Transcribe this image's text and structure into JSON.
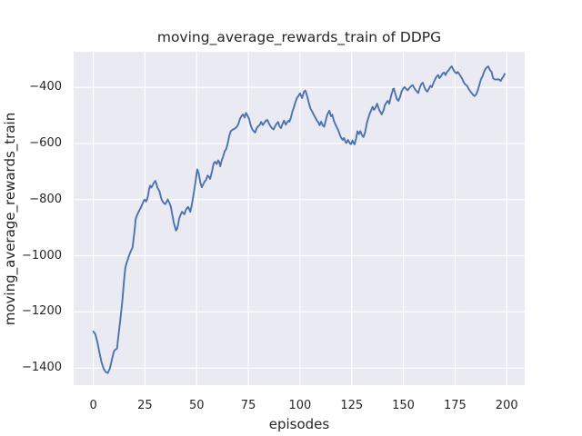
{
  "figure": {
    "background": "#ffffff"
  },
  "chart_data": {
    "type": "line",
    "title": "moving_average_rewards_train of DDPG",
    "xlabel": "episodes",
    "ylabel": "moving_average_rewards_train",
    "xlim": [
      -9.5,
      208.7
    ],
    "ylim": [
      -1461,
      -273
    ],
    "xticks": [
      0,
      25,
      50,
      75,
      100,
      125,
      150,
      175,
      200
    ],
    "yticks": [
      -400,
      -600,
      -800,
      -1000,
      -1200,
      -1400
    ],
    "grid": true,
    "legend_position": "none",
    "style": {
      "plot_background": "#eaeaf2",
      "grid_color": "#ffffff",
      "line_color": "#4c72b0",
      "text_color": "#262626",
      "line_width": 1.9
    },
    "series": [
      {
        "name": "moving_average_rewards_train",
        "points": [
          [
            0,
            -1270
          ],
          [
            0.5,
            -1274
          ],
          [
            1,
            -1280
          ],
          [
            2,
            -1308
          ],
          [
            3,
            -1346
          ],
          [
            4,
            -1380
          ],
          [
            5,
            -1402
          ],
          [
            6,
            -1414
          ],
          [
            7,
            -1418
          ],
          [
            8,
            -1402
          ],
          [
            9,
            -1370
          ],
          [
            10,
            -1340
          ],
          [
            10.5,
            -1336
          ],
          [
            11,
            -1333
          ],
          [
            11.5,
            -1330
          ],
          [
            12,
            -1295
          ],
          [
            13,
            -1232
          ],
          [
            14,
            -1165
          ],
          [
            15,
            -1078
          ],
          [
            15.5,
            -1043
          ],
          [
            16,
            -1028
          ],
          [
            17,
            -1006
          ],
          [
            17.6,
            -994
          ],
          [
            18,
            -986
          ],
          [
            19,
            -970
          ],
          [
            20,
            -908
          ],
          [
            20.5,
            -870
          ],
          [
            21,
            -858
          ],
          [
            22,
            -842
          ],
          [
            23,
            -828
          ],
          [
            24,
            -811
          ],
          [
            24.5,
            -802
          ],
          [
            25,
            -800
          ],
          [
            25.5,
            -807
          ],
          [
            26,
            -800
          ],
          [
            26.5,
            -785
          ],
          [
            27,
            -762
          ],
          [
            27.5,
            -750
          ],
          [
            28,
            -757
          ],
          [
            28.5,
            -752
          ],
          [
            29,
            -744
          ],
          [
            29.5,
            -738
          ],
          [
            30,
            -733
          ],
          [
            30.5,
            -742
          ],
          [
            31,
            -757
          ],
          [
            32,
            -770
          ],
          [
            33,
            -799
          ],
          [
            34,
            -811
          ],
          [
            34.8,
            -816
          ],
          [
            35.3,
            -810
          ],
          [
            36,
            -799
          ],
          [
            36.7,
            -810
          ],
          [
            37.5,
            -825
          ],
          [
            38,
            -845
          ],
          [
            39,
            -884
          ],
          [
            40,
            -910
          ],
          [
            40.5,
            -905
          ],
          [
            41,
            -890
          ],
          [
            41.5,
            -869
          ],
          [
            42,
            -858
          ],
          [
            42.9,
            -843
          ],
          [
            43.5,
            -848
          ],
          [
            44.1,
            -852
          ],
          [
            44.6,
            -840
          ],
          [
            45.1,
            -832
          ],
          [
            45.9,
            -826
          ],
          [
            46.4,
            -834
          ],
          [
            46.9,
            -843
          ],
          [
            47.5,
            -825
          ],
          [
            48.1,
            -799
          ],
          [
            48.8,
            -768
          ],
          [
            49.6,
            -728
          ],
          [
            50.3,
            -692
          ],
          [
            51,
            -706
          ],
          [
            51.8,
            -740
          ],
          [
            52.5,
            -756
          ],
          [
            53,
            -748
          ],
          [
            53.8,
            -736
          ],
          [
            54.6,
            -729
          ],
          [
            55.3,
            -714
          ],
          [
            56,
            -719
          ],
          [
            56.5,
            -726
          ],
          [
            57,
            -712
          ],
          [
            57.5,
            -697
          ],
          [
            58.2,
            -671
          ],
          [
            58.9,
            -665
          ],
          [
            59.7,
            -673
          ],
          [
            60.4,
            -660
          ],
          [
            61,
            -668
          ],
          [
            61.4,
            -681
          ],
          [
            62,
            -663
          ],
          [
            62.8,
            -647
          ],
          [
            63.6,
            -627
          ],
          [
            64.3,
            -620
          ],
          [
            65,
            -600
          ],
          [
            65.8,
            -572
          ],
          [
            66.5,
            -556
          ],
          [
            67.3,
            -551
          ],
          [
            68,
            -549
          ],
          [
            68.7,
            -545
          ],
          [
            69.5,
            -540
          ],
          [
            70.2,
            -530
          ],
          [
            70.9,
            -513
          ],
          [
            71.6,
            -503
          ],
          [
            72.4,
            -496
          ],
          [
            73.2,
            -507
          ],
          [
            73.9,
            -491
          ],
          [
            74.6,
            -500
          ],
          [
            75.4,
            -513
          ],
          [
            76.1,
            -534
          ],
          [
            76.8,
            -548
          ],
          [
            77.6,
            -556
          ],
          [
            78.3,
            -561
          ],
          [
            79,
            -546
          ],
          [
            79.8,
            -538
          ],
          [
            80.5,
            -534
          ],
          [
            81.2,
            -523
          ],
          [
            82,
            -534
          ],
          [
            82.7,
            -527
          ],
          [
            83.5,
            -518
          ],
          [
            84.2,
            -516
          ],
          [
            85,
            -529
          ],
          [
            85.7,
            -538
          ],
          [
            86.4,
            -545
          ],
          [
            87.2,
            -550
          ],
          [
            87.9,
            -539
          ],
          [
            88.6,
            -530
          ],
          [
            89.4,
            -523
          ],
          [
            90.1,
            -539
          ],
          [
            90.8,
            -545
          ],
          [
            91.6,
            -529
          ],
          [
            92.3,
            -518
          ],
          [
            93.1,
            -533
          ],
          [
            93.8,
            -524
          ],
          [
            94.5,
            -518
          ],
          [
            94.9,
            -522
          ],
          [
            95.6,
            -508
          ],
          [
            96.3,
            -486
          ],
          [
            97.1,
            -470
          ],
          [
            97.8,
            -452
          ],
          [
            98.5,
            -438
          ],
          [
            99.3,
            -430
          ],
          [
            100,
            -421
          ],
          [
            100.5,
            -430
          ],
          [
            101,
            -438
          ],
          [
            101.9,
            -416
          ],
          [
            102.5,
            -411
          ],
          [
            103,
            -420
          ],
          [
            103.7,
            -438
          ],
          [
            104.4,
            -459
          ],
          [
            105.1,
            -476
          ],
          [
            105.9,
            -486
          ],
          [
            106.6,
            -497
          ],
          [
            107.3,
            -506
          ],
          [
            108.1,
            -517
          ],
          [
            108.8,
            -524
          ],
          [
            109.5,
            -535
          ],
          [
            110.2,
            -522
          ],
          [
            111,
            -535
          ],
          [
            111.7,
            -540
          ],
          [
            112.4,
            -519
          ],
          [
            113.2,
            -497
          ],
          [
            114.2,
            -483
          ],
          [
            115,
            -503
          ],
          [
            115.6,
            -497
          ],
          [
            116.4,
            -519
          ],
          [
            117.3,
            -535
          ],
          [
            118.4,
            -551
          ],
          [
            119.1,
            -565
          ],
          [
            119.8,
            -578
          ],
          [
            120.6,
            -587
          ],
          [
            121.3,
            -580
          ],
          [
            122,
            -595
          ],
          [
            122.5,
            -598
          ],
          [
            123.2,
            -587
          ],
          [
            124.2,
            -600
          ],
          [
            124.7,
            -602
          ],
          [
            125.4,
            -589
          ],
          [
            126.1,
            -600
          ],
          [
            126.4,
            -603
          ],
          [
            127.1,
            -583
          ],
          [
            127.8,
            -556
          ],
          [
            128.5,
            -566
          ],
          [
            129.2,
            -556
          ],
          [
            130,
            -570
          ],
          [
            130.7,
            -577
          ],
          [
            131.5,
            -560
          ],
          [
            132.4,
            -525
          ],
          [
            133.6,
            -496
          ],
          [
            134.5,
            -480
          ],
          [
            135.1,
            -469
          ],
          [
            135.8,
            -480
          ],
          [
            136.5,
            -472
          ],
          [
            137.3,
            -458
          ],
          [
            138.3,
            -480
          ],
          [
            139.5,
            -496
          ],
          [
            140.5,
            -480
          ],
          [
            141,
            -464
          ],
          [
            142,
            -452
          ],
          [
            142.5,
            -448
          ],
          [
            143.2,
            -458
          ],
          [
            144,
            -432
          ],
          [
            145,
            -406
          ],
          [
            145.4,
            -404
          ],
          [
            146.3,
            -428
          ],
          [
            146.9,
            -442
          ],
          [
            147.6,
            -448
          ],
          [
            148.4,
            -434
          ],
          [
            149.1,
            -415
          ],
          [
            150,
            -403
          ],
          [
            150.6,
            -399
          ],
          [
            151.4,
            -406
          ],
          [
            152.1,
            -410
          ],
          [
            153,
            -401
          ],
          [
            154,
            -394
          ],
          [
            154.5,
            -392
          ],
          [
            155.4,
            -404
          ],
          [
            156.2,
            -412
          ],
          [
            157.2,
            -420
          ],
          [
            158,
            -400
          ],
          [
            158.7,
            -388
          ],
          [
            159.4,
            -383
          ],
          [
            160.2,
            -400
          ],
          [
            160.9,
            -410
          ],
          [
            161.6,
            -415
          ],
          [
            162.4,
            -404
          ],
          [
            163.1,
            -394
          ],
          [
            163.8,
            -399
          ],
          [
            164.5,
            -385
          ],
          [
            165.3,
            -372
          ],
          [
            166,
            -362
          ],
          [
            166.8,
            -356
          ],
          [
            167.5,
            -367
          ],
          [
            168.2,
            -360
          ],
          [
            169,
            -350
          ],
          [
            169.7,
            -347
          ],
          [
            170.4,
            -356
          ],
          [
            171.2,
            -344
          ],
          [
            171.9,
            -339
          ],
          [
            172.7,
            -330
          ],
          [
            173.4,
            -325
          ],
          [
            174.2,
            -337
          ],
          [
            174.9,
            -345
          ],
          [
            175.6,
            -350
          ],
          [
            176.3,
            -345
          ],
          [
            177,
            -352
          ],
          [
            177.8,
            -361
          ],
          [
            178.5,
            -370
          ],
          [
            179.3,
            -383
          ],
          [
            180,
            -390
          ],
          [
            180.8,
            -394
          ],
          [
            181.5,
            -404
          ],
          [
            182.3,
            -413
          ],
          [
            183,
            -420
          ],
          [
            183.8,
            -427
          ],
          [
            184.5,
            -431
          ],
          [
            185.3,
            -424
          ],
          [
            186,
            -410
          ],
          [
            186.8,
            -390
          ],
          [
            187.5,
            -372
          ],
          [
            188.3,
            -360
          ],
          [
            189,
            -345
          ],
          [
            190,
            -331
          ],
          [
            191,
            -325
          ],
          [
            191.9,
            -338
          ],
          [
            192.7,
            -345
          ],
          [
            193.4,
            -367
          ],
          [
            194.1,
            -371
          ],
          [
            194.9,
            -372
          ],
          [
            195.6,
            -371
          ],
          [
            196.4,
            -372
          ],
          [
            197.1,
            -377
          ],
          [
            197.8,
            -367
          ],
          [
            198.5,
            -360
          ],
          [
            199,
            -352
          ]
        ]
      }
    ]
  }
}
